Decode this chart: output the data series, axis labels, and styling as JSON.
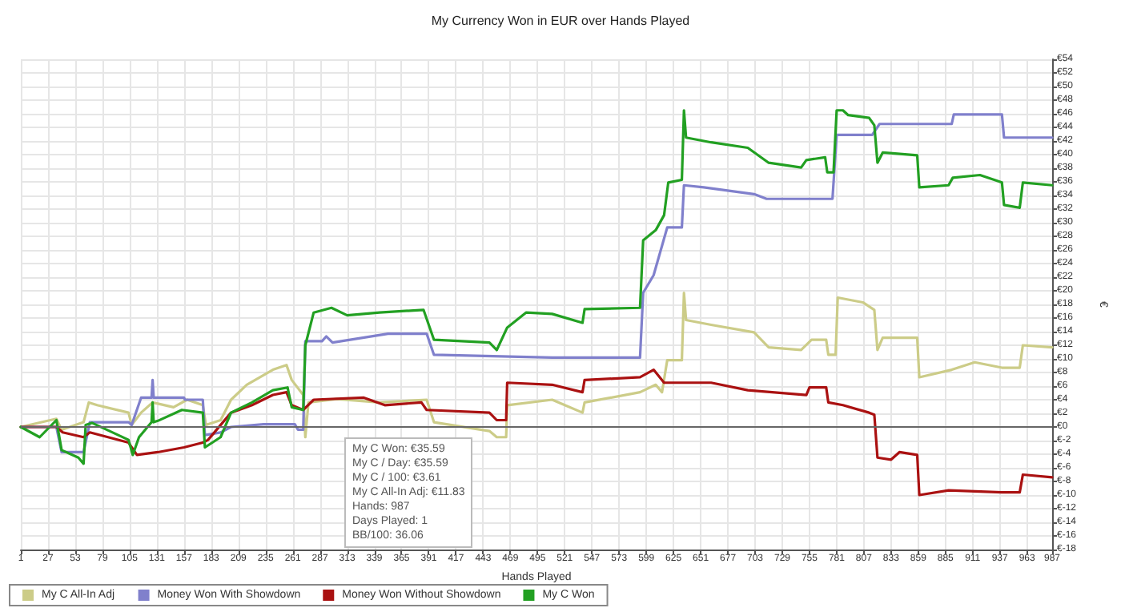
{
  "chart_data": {
    "type": "line",
    "title": "My Currency Won in EUR over Hands Played",
    "xlabel": "Hands Played",
    "ylabel": "€",
    "marker": "none",
    "line_style": "solid",
    "grid": true,
    "legend": "bottom left",
    "xlim": [
      1,
      987
    ],
    "xticks": [
      1,
      27,
      53,
      79,
      105,
      131,
      157,
      183,
      209,
      235,
      261,
      287,
      313,
      339,
      365,
      391,
      417,
      443,
      469,
      495,
      521,
      547,
      573,
      599,
      625,
      651,
      677,
      703,
      729,
      755,
      781,
      807,
      833,
      859,
      885,
      911,
      937,
      963,
      987
    ],
    "ylim": [
      -18,
      54
    ],
    "yticks": [
      {
        "value": -18,
        "label": "€-18"
      },
      {
        "value": -16,
        "label": "€-16"
      },
      {
        "value": -14,
        "label": "€-14"
      },
      {
        "value": -12,
        "label": "€-12"
      },
      {
        "value": -10,
        "label": "€-10"
      },
      {
        "value": -8,
        "label": "€-8"
      },
      {
        "value": -6,
        "label": "€-6"
      },
      {
        "value": -4,
        "label": "€-4"
      },
      {
        "value": -2,
        "label": "€-2"
      },
      {
        "value": 0,
        "label": "€0"
      },
      {
        "value": 2,
        "label": "€2"
      },
      {
        "value": 4,
        "label": "€4"
      },
      {
        "value": 6,
        "label": "€6"
      },
      {
        "value": 8,
        "label": "€8"
      },
      {
        "value": 10,
        "label": "€10"
      },
      {
        "value": 12,
        "label": "€12"
      },
      {
        "value": 14,
        "label": "€14"
      },
      {
        "value": 16,
        "label": "€16"
      },
      {
        "value": 18,
        "label": "€18"
      },
      {
        "value": 20,
        "label": "€20"
      },
      {
        "value": 22,
        "label": "€22"
      },
      {
        "value": 24,
        "label": "€24"
      },
      {
        "value": 26,
        "label": "€26"
      },
      {
        "value": 28,
        "label": "€28"
      },
      {
        "value": 30,
        "label": "€30"
      },
      {
        "value": 32,
        "label": "€32"
      },
      {
        "value": 34,
        "label": "€34"
      },
      {
        "value": 36,
        "label": "€36"
      },
      {
        "value": 38,
        "label": "€38"
      },
      {
        "value": 40,
        "label": "€40"
      },
      {
        "value": 42,
        "label": "€42"
      },
      {
        "value": 44,
        "label": "€44"
      },
      {
        "value": 46,
        "label": "€46"
      },
      {
        "value": 48,
        "label": "€48"
      },
      {
        "value": 50,
        "label": "€50"
      },
      {
        "value": 52,
        "label": "€52"
      },
      {
        "value": 54,
        "label": "€54"
      }
    ],
    "ref_lines": [
      {
        "axis": "y",
        "value": 0,
        "color": "#666666"
      }
    ],
    "annotations": [
      "My C Won: €35.59",
      "My C / Day: €35.59",
      "My C / 100: €3.61",
      "My C All-In Adj: €11.83",
      "Hands: 987",
      "Days Played: 1",
      "BB/100: 36.06"
    ],
    "series": [
      {
        "name": "My C All-In Adj",
        "color": "#cccc88",
        "x": [
          1,
          35,
          40,
          61,
          66,
          74,
          104,
          107,
          116,
          127,
          147,
          160,
          175,
          178,
          192,
          202,
          217,
          242,
          255,
          260,
          271,
          273,
          276,
          303,
          344,
          389,
          396,
          449,
          456,
          465,
          466,
          509,
          538,
          540,
          593,
          608,
          614,
          619,
          633,
          635,
          637,
          661,
          702,
          716,
          747,
          757,
          771,
          773,
          780,
          782,
          806,
          817,
          820,
          825,
          858,
          860,
          891,
          913,
          939,
          956,
          959,
          987
        ],
        "values": [
          0,
          1.2,
          -0.4,
          0.7,
          3.6,
          3.2,
          2.1,
          0.3,
          2.1,
          3.6,
          2.9,
          4.0,
          3.2,
          0.3,
          1.0,
          4.0,
          6.2,
          8.4,
          9.1,
          6.9,
          4.7,
          -1.5,
          3.6,
          4.1,
          3.6,
          4.0,
          0.7,
          -0.6,
          -1.5,
          -1.5,
          3.2,
          4.0,
          2.1,
          3.6,
          5.1,
          6.2,
          5.1,
          9.8,
          9.8,
          19.7,
          15.7,
          15.0,
          13.9,
          11.7,
          11.3,
          12.8,
          12.8,
          10.6,
          10.6,
          19.0,
          18.3,
          17.2,
          11.3,
          13.1,
          13.1,
          7.3,
          8.4,
          9.5,
          8.7,
          8.7,
          12.0,
          11.7
        ]
      },
      {
        "name": "Money Won With Showdown",
        "color": "#8080cc",
        "x": [
          1,
          35,
          40,
          61,
          67,
          104,
          107,
          116,
          126,
          127,
          128,
          157,
          158,
          175,
          177,
          192,
          202,
          233,
          263,
          266,
          271,
          273,
          289,
          293,
          299,
          352,
          389,
          396,
          509,
          593,
          596,
          606,
          619,
          633,
          635,
          654,
          702,
          714,
          777,
          781,
          815,
          822,
          891,
          893,
          939,
          941,
          987
        ],
        "values": [
          0,
          0,
          -3.7,
          -3.7,
          0.7,
          0.7,
          0.3,
          4.3,
          4.3,
          6.9,
          4.3,
          4.3,
          4.0,
          4.0,
          -1.2,
          -0.8,
          0,
          0.4,
          0.4,
          -0.4,
          -0.4,
          12.6,
          12.6,
          13.3,
          12.4,
          13.7,
          13.7,
          10.6,
          10.2,
          10.2,
          19.7,
          22.3,
          29.3,
          29.3,
          35.5,
          35.2,
          34.2,
          33.5,
          33.5,
          42.9,
          42.9,
          44.5,
          44.5,
          45.9,
          45.9,
          42.5,
          42.5
        ]
      },
      {
        "name": "Money Won Without Showdown",
        "color": "#aa1111",
        "x": [
          1,
          35,
          41,
          61,
          67,
          104,
          112,
          132,
          157,
          175,
          180,
          202,
          222,
          242,
          255,
          260,
          271,
          281,
          329,
          349,
          384,
          389,
          449,
          456,
          465,
          466,
          509,
          538,
          540,
          593,
          606,
          616,
          661,
          696,
          752,
          755,
          771,
          773,
          787,
          812,
          817,
          820,
          833,
          841,
          858,
          860,
          888,
          939,
          956,
          959,
          987
        ],
        "values": [
          0,
          0,
          -0.8,
          -1.5,
          -0.8,
          -2.3,
          -4.1,
          -3.7,
          -3.0,
          -2.3,
          -1.9,
          2.1,
          3.2,
          4.7,
          5.1,
          3.2,
          2.5,
          4.0,
          4.3,
          3.2,
          3.6,
          2.5,
          2.1,
          1.0,
          1.0,
          6.5,
          6.2,
          5.1,
          6.9,
          7.3,
          8.4,
          6.5,
          6.5,
          5.4,
          4.7,
          5.8,
          5.8,
          3.6,
          3.2,
          2.1,
          1.8,
          -4.5,
          -4.8,
          -3.7,
          -4.1,
          -10.0,
          -9.3,
          -9.6,
          -9.6,
          -7.0,
          -7.4
        ]
      },
      {
        "name": "My C Won",
        "color": "#22a022",
        "x": [
          1,
          19,
          35,
          40,
          56,
          61,
          63,
          69,
          104,
          108,
          114,
          126,
          127,
          128,
          132,
          155,
          175,
          177,
          192,
          202,
          222,
          242,
          256,
          260,
          271,
          273,
          281,
          298,
          313,
          344,
          386,
          396,
          449,
          456,
          466,
          484,
          509,
          538,
          540,
          593,
          596,
          608,
          616,
          620,
          633,
          635,
          637,
          661,
          696,
          716,
          747,
          752,
          770,
          772,
          778,
          781,
          787,
          792,
          812,
          817,
          820,
          825,
          858,
          860,
          888,
          892,
          918,
          939,
          941,
          956,
          959,
          987
        ],
        "values": [
          0,
          -1.5,
          1.0,
          -3.4,
          -4.5,
          -5.4,
          0.3,
          0.6,
          -1.9,
          -4.1,
          -1.5,
          0.7,
          3.6,
          0.7,
          0.9,
          2.5,
          2.1,
          -3.0,
          -1.5,
          2.1,
          3.6,
          5.4,
          5.8,
          2.9,
          2.5,
          12.0,
          16.8,
          17.5,
          16.4,
          16.8,
          17.2,
          12.8,
          12.4,
          11.3,
          14.6,
          16.8,
          16.6,
          15.3,
          17.3,
          17.5,
          27.4,
          28.9,
          31.1,
          35.9,
          36.3,
          46.5,
          42.5,
          41.8,
          41.0,
          38.8,
          38.1,
          39.2,
          39.6,
          37.4,
          37.4,
          46.5,
          46.5,
          45.8,
          45.4,
          44.3,
          38.8,
          40.3,
          39.9,
          35.2,
          35.5,
          36.6,
          37.0,
          35.9,
          32.6,
          32.2,
          35.9,
          35.5
        ]
      }
    ]
  }
}
